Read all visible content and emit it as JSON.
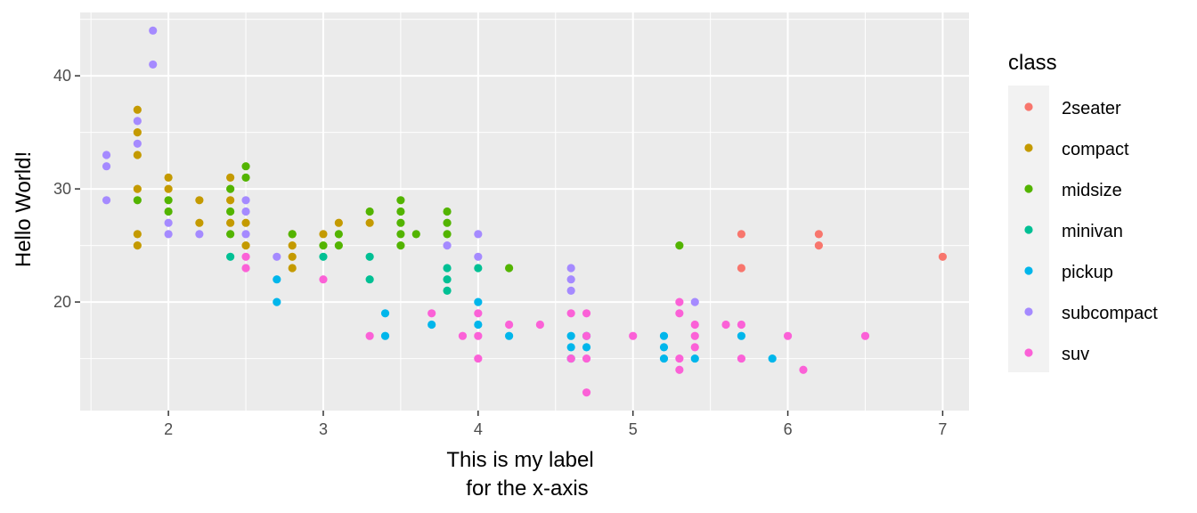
{
  "chart_data": {
    "type": "scatter",
    "title": "",
    "xlabel_lines": [
      "This is my label",
      "for the x-axis"
    ],
    "ylabel": "Hello World!",
    "xlim": [
      1.43,
      7.17
    ],
    "ylim": [
      10.4,
      45.6
    ],
    "xticks": [
      2,
      3,
      4,
      5,
      6,
      7
    ],
    "yticks": [
      20,
      30,
      40
    ],
    "grid": true,
    "legend": {
      "title": "class",
      "placement": "right"
    },
    "series": [
      {
        "name": "2seater",
        "color": "#F8766D",
        "points": [
          [
            5.7,
            26
          ],
          [
            5.7,
            23
          ],
          [
            6.2,
            26
          ],
          [
            6.2,
            25
          ],
          [
            7.0,
            24
          ]
        ]
      },
      {
        "name": "compact",
        "color": "#C49A00",
        "points": [
          [
            1.8,
            37
          ],
          [
            1.8,
            35
          ],
          [
            1.8,
            33
          ],
          [
            1.8,
            30
          ],
          [
            1.8,
            26
          ],
          [
            1.8,
            25
          ],
          [
            2.0,
            31
          ],
          [
            2.0,
            30
          ],
          [
            2.2,
            29
          ],
          [
            2.2,
            27
          ],
          [
            2.4,
            31
          ],
          [
            2.4,
            29
          ],
          [
            2.4,
            27
          ],
          [
            2.5,
            27
          ],
          [
            2.5,
            25
          ],
          [
            2.8,
            26
          ],
          [
            2.8,
            25
          ],
          [
            2.8,
            24
          ],
          [
            2.8,
            23
          ],
          [
            3.0,
            26
          ],
          [
            3.1,
            27
          ],
          [
            3.3,
            27
          ]
        ]
      },
      {
        "name": "midsize",
        "color": "#53B400",
        "points": [
          [
            1.8,
            29
          ],
          [
            2.0,
            29
          ],
          [
            2.0,
            28
          ],
          [
            2.4,
            30
          ],
          [
            2.4,
            28
          ],
          [
            2.4,
            26
          ],
          [
            2.5,
            32
          ],
          [
            2.5,
            31
          ],
          [
            2.8,
            26
          ],
          [
            3.0,
            25
          ],
          [
            3.1,
            26
          ],
          [
            3.1,
            25
          ],
          [
            3.3,
            28
          ],
          [
            3.5,
            29
          ],
          [
            3.5,
            28
          ],
          [
            3.5,
            27
          ],
          [
            3.5,
            26
          ],
          [
            3.5,
            25
          ],
          [
            3.6,
            26
          ],
          [
            3.8,
            28
          ],
          [
            3.8,
            27
          ],
          [
            3.8,
            26
          ],
          [
            4.2,
            23
          ],
          [
            5.3,
            25
          ]
        ]
      },
      {
        "name": "minivan",
        "color": "#00C094",
        "points": [
          [
            2.4,
            24
          ],
          [
            3.0,
            24
          ],
          [
            3.3,
            24
          ],
          [
            3.3,
            22
          ],
          [
            3.8,
            23
          ],
          [
            3.8,
            22
          ],
          [
            3.8,
            21
          ],
          [
            4.0,
            23
          ]
        ]
      },
      {
        "name": "pickup",
        "color": "#00B6EB",
        "points": [
          [
            2.7,
            22
          ],
          [
            2.7,
            20
          ],
          [
            3.4,
            19
          ],
          [
            3.4,
            17
          ],
          [
            3.7,
            18
          ],
          [
            4.0,
            20
          ],
          [
            4.0,
            18
          ],
          [
            4.2,
            17
          ],
          [
            4.6,
            17
          ],
          [
            4.6,
            16
          ],
          [
            4.6,
            15
          ],
          [
            4.7,
            17
          ],
          [
            4.7,
            16
          ],
          [
            5.2,
            17
          ],
          [
            5.2,
            16
          ],
          [
            5.2,
            15
          ],
          [
            5.4,
            15
          ],
          [
            5.7,
            17
          ],
          [
            5.9,
            15
          ]
        ]
      },
      {
        "name": "subcompact",
        "color": "#A58AFF",
        "points": [
          [
            1.6,
            33
          ],
          [
            1.6,
            32
          ],
          [
            1.6,
            29
          ],
          [
            1.8,
            36
          ],
          [
            1.8,
            34
          ],
          [
            1.9,
            44
          ],
          [
            1.9,
            41
          ],
          [
            2.0,
            27
          ],
          [
            2.0,
            26
          ],
          [
            2.2,
            26
          ],
          [
            2.5,
            29
          ],
          [
            2.5,
            28
          ],
          [
            2.5,
            26
          ],
          [
            2.7,
            24
          ],
          [
            3.8,
            25
          ],
          [
            4.0,
            26
          ],
          [
            4.0,
            24
          ],
          [
            4.6,
            23
          ],
          [
            4.6,
            22
          ],
          [
            4.6,
            21
          ],
          [
            5.4,
            20
          ]
        ]
      },
      {
        "name": "suv",
        "color": "#FB61D7",
        "points": [
          [
            2.5,
            24
          ],
          [
            2.5,
            23
          ],
          [
            3.0,
            22
          ],
          [
            3.3,
            17
          ],
          [
            3.7,
            19
          ],
          [
            3.9,
            17
          ],
          [
            4.0,
            19
          ],
          [
            4.0,
            17
          ],
          [
            4.0,
            15
          ],
          [
            4.2,
            18
          ],
          [
            4.4,
            18
          ],
          [
            4.6,
            19
          ],
          [
            4.6,
            15
          ],
          [
            4.7,
            19
          ],
          [
            4.7,
            17
          ],
          [
            4.7,
            15
          ],
          [
            4.7,
            12
          ],
          [
            5.0,
            17
          ],
          [
            5.3,
            20
          ],
          [
            5.3,
            19
          ],
          [
            5.3,
            15
          ],
          [
            5.3,
            14
          ],
          [
            5.4,
            18
          ],
          [
            5.4,
            17
          ],
          [
            5.4,
            16
          ],
          [
            5.6,
            18
          ],
          [
            5.7,
            18
          ],
          [
            5.7,
            15
          ],
          [
            6.0,
            17
          ],
          [
            6.1,
            14
          ],
          [
            6.5,
            17
          ]
        ]
      }
    ]
  }
}
